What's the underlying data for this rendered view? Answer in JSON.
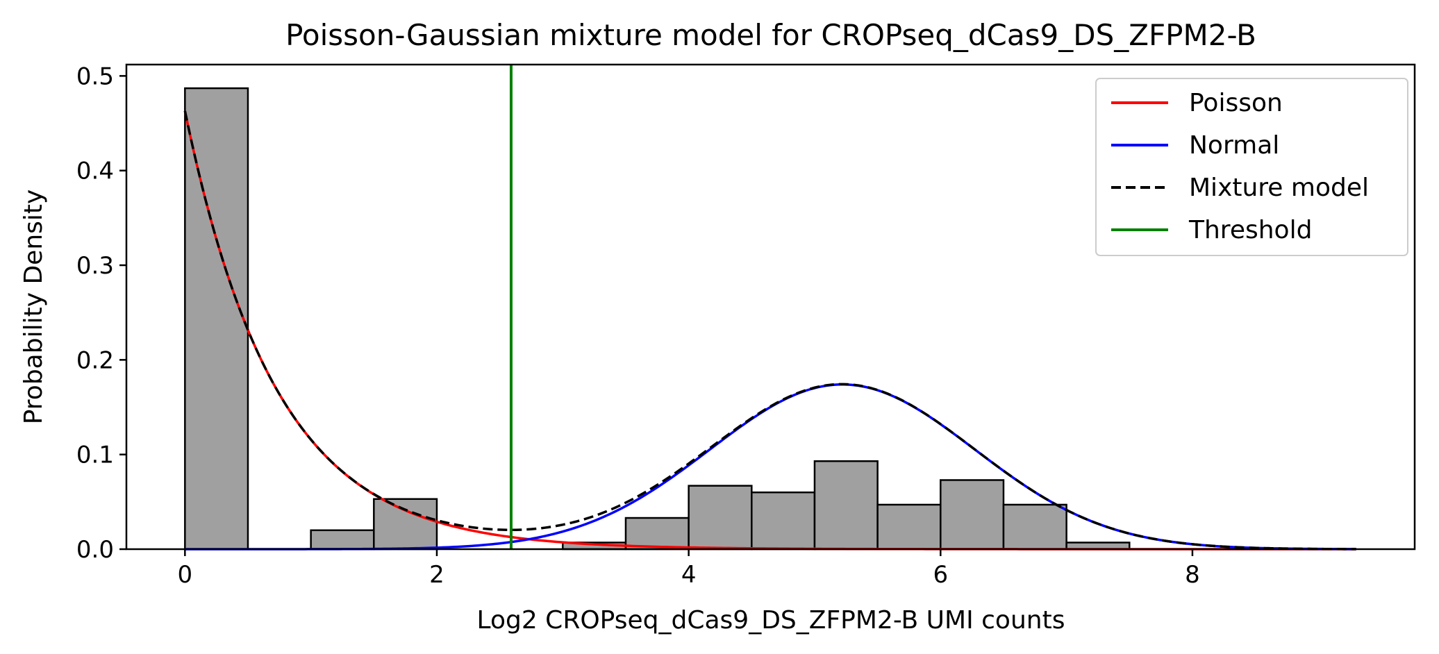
{
  "chart_data": {
    "type": "histogram",
    "title": "Poisson-Gaussian mixture model for CROPseq_dCas9_DS_ZFPM2-B",
    "xlabel": "Log2 CROPseq_dCas9_DS_ZFPM2-B UMI counts",
    "ylabel": "Probability Density",
    "xlim": [
      -0.465,
      9.765
    ],
    "ylim": [
      0,
      0.512
    ],
    "xticks": [
      0,
      2,
      4,
      6,
      8
    ],
    "yticks": [
      0.0,
      0.1,
      0.2,
      0.3,
      0.4,
      0.5
    ],
    "ytick_labels": [
      "0.0",
      "0.1",
      "0.2",
      "0.3",
      "0.4",
      "0.5"
    ],
    "grid": false,
    "legend_position": "top-right",
    "histogram": {
      "color": "#a0a0a0",
      "edge_color": "#000000",
      "bins": [
        {
          "x0": 0.0,
          "x1": 0.5,
          "density": 0.487
        },
        {
          "x0": 1.0,
          "x1": 1.5,
          "density": 0.02
        },
        {
          "x0": 1.5,
          "x1": 2.0,
          "density": 0.053
        },
        {
          "x0": 3.0,
          "x1": 3.5,
          "density": 0.007
        },
        {
          "x0": 3.5,
          "x1": 4.0,
          "density": 0.033
        },
        {
          "x0": 4.0,
          "x1": 4.5,
          "density": 0.067
        },
        {
          "x0": 4.5,
          "x1": 5.0,
          "density": 0.06
        },
        {
          "x0": 5.0,
          "x1": 5.5,
          "density": 0.093
        },
        {
          "x0": 5.5,
          "x1": 6.0,
          "density": 0.047
        },
        {
          "x0": 6.0,
          "x1": 6.5,
          "density": 0.073
        },
        {
          "x0": 6.5,
          "x1": 7.0,
          "density": 0.047
        },
        {
          "x0": 7.0,
          "x1": 7.5,
          "density": 0.007
        }
      ]
    },
    "curves": {
      "x_range": [
        0,
        9.3
      ],
      "poisson": {
        "decay_rate": 1.386,
        "amplitude": 0.463
      },
      "normal": {
        "mean": 5.22,
        "sd": 1.05,
        "peak": 0.174
      }
    },
    "threshold": 2.59,
    "legend": [
      {
        "label": "Poisson",
        "color": "#ff0000",
        "style": "solid"
      },
      {
        "label": "Normal",
        "color": "#0000ff",
        "style": "solid"
      },
      {
        "label": "Mixture model",
        "color": "#000000",
        "style": "dashed"
      },
      {
        "label": "Threshold",
        "color": "#008000",
        "style": "solid"
      }
    ]
  }
}
